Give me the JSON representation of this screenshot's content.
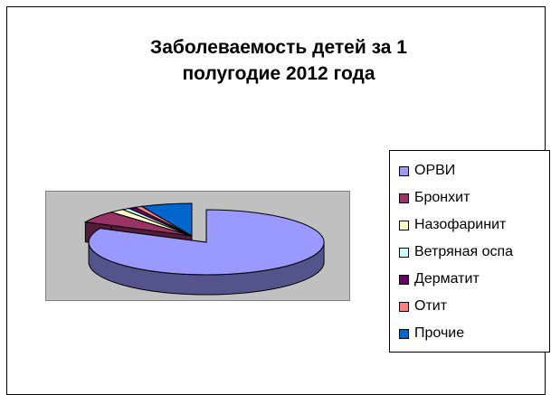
{
  "chart_data": {
    "type": "pie",
    "title_lines": [
      "Заболеваемость детей за 1",
      "полугодие 2012 года"
    ],
    "categories": [
      "ОРВИ",
      "Бронхит",
      "Назофаринит",
      "Ветряная оспа",
      "Дерматит",
      "Отит",
      "Прочие"
    ],
    "values": [
      82,
      6,
      2,
      1,
      1,
      1,
      7
    ],
    "colors": [
      "#9999ff",
      "#993366",
      "#ffffcc",
      "#ccffff",
      "#660066",
      "#ff8080",
      "#0066cc"
    ],
    "exploded": "ОРВИ",
    "three_d": true,
    "legend_position": "right",
    "plot_background": "#c0c0c0"
  }
}
